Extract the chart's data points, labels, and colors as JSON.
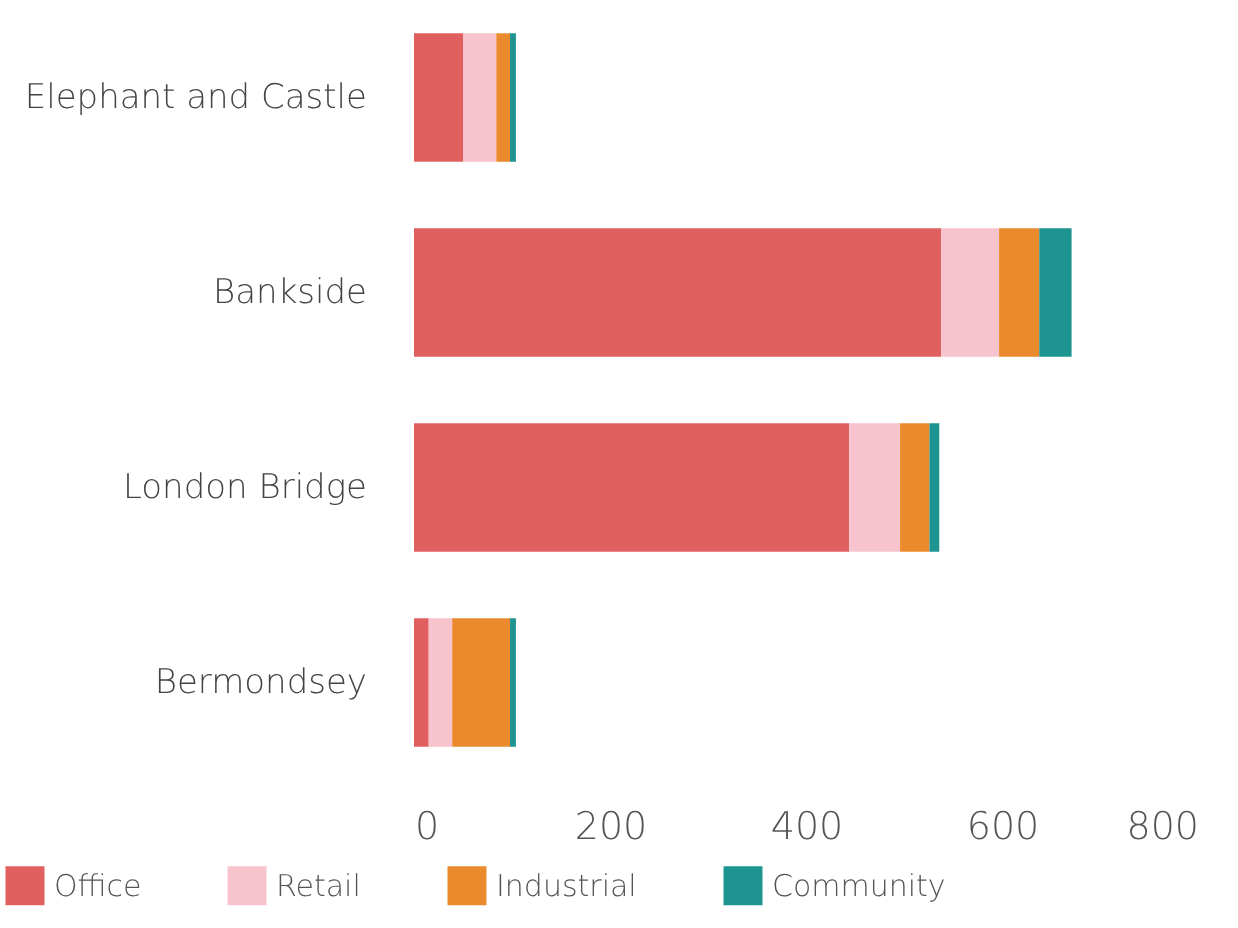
{
  "chart_data": {
    "type": "bar",
    "orientation": "horizontal",
    "stacked": true,
    "categories": [
      "Elephant and Castle",
      "Bankside",
      "London Bridge",
      "Bermondsey"
    ],
    "series": [
      {
        "name": "Office",
        "color": "#e06060",
        "values": [
          50,
          538,
          444,
          15
        ]
      },
      {
        "name": "Retail",
        "color": "#f7c3cc",
        "values": [
          34,
          59,
          52,
          24
        ]
      },
      {
        "name": "Industrial",
        "color": "#eb8a2c",
        "values": [
          14,
          41,
          30,
          59
        ]
      },
      {
        "name": "Community",
        "color": "#1e9490",
        "values": [
          6,
          33,
          10,
          6
        ]
      }
    ],
    "xlim": [
      0,
      800
    ],
    "xticks": [
      0,
      200,
      400,
      600,
      800
    ],
    "grid": false,
    "legend": "bottom left"
  }
}
